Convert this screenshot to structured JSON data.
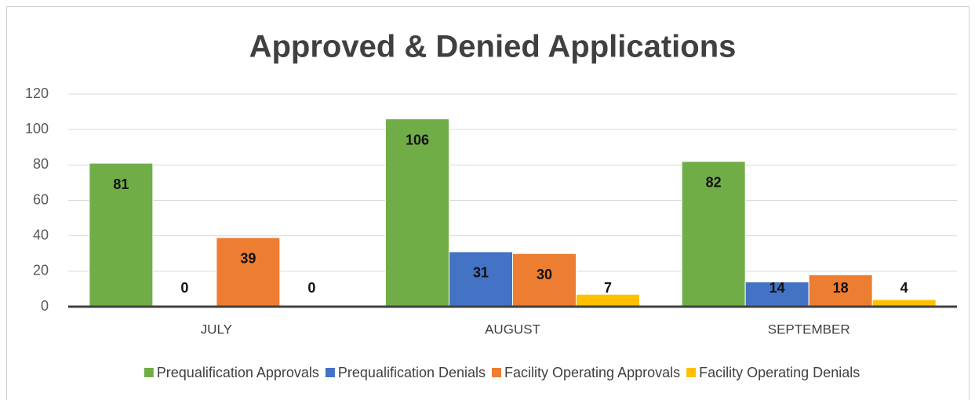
{
  "chart_data": {
    "type": "bar",
    "title": "Approved & Denied Applications",
    "categories": [
      "JULY",
      "AUGUST",
      "SEPTEMBER"
    ],
    "series": [
      {
        "name": "Prequalification Approvals",
        "color": "#70ad47",
        "values": [
          81,
          106,
          82
        ]
      },
      {
        "name": "Prequalification Denials",
        "color": "#4472c4",
        "values": [
          0,
          31,
          14
        ]
      },
      {
        "name": "Facility Operating Approvals",
        "color": "#ed7d31",
        "values": [
          39,
          30,
          18
        ]
      },
      {
        "name": "Facility Operating Denials",
        "color": "#ffc000",
        "values": [
          0,
          7,
          4
        ]
      }
    ],
    "ylim": [
      0,
      120
    ],
    "yticks": [
      0,
      20,
      40,
      60,
      80,
      100,
      120
    ],
    "grid": true,
    "legend": "bottom"
  }
}
